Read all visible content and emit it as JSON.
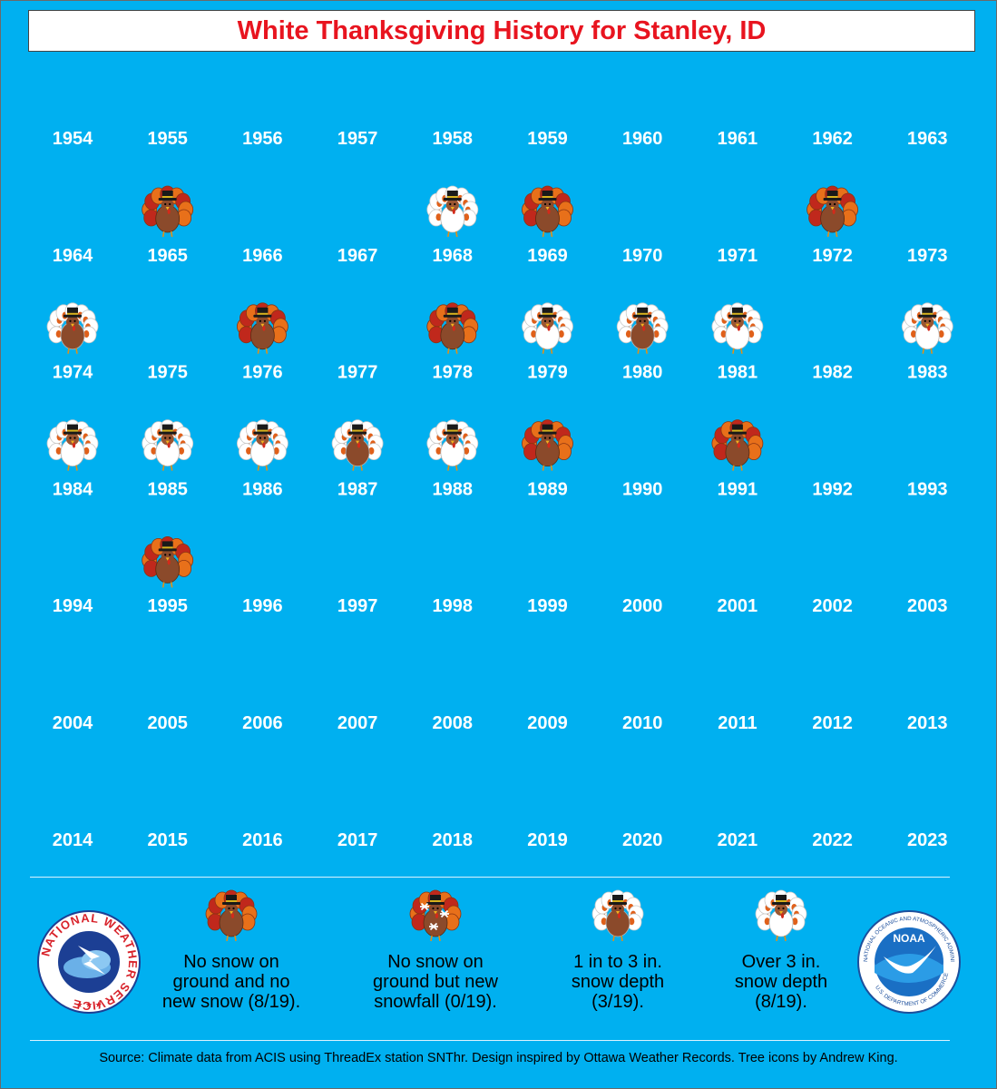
{
  "title": "White Thanksgiving History for Stanley, ID",
  "chart_data": {
    "type": "table",
    "columns_per_row": 10,
    "years": [
      "1954",
      "1955",
      "1956",
      "1957",
      "1958",
      "1959",
      "1960",
      "1961",
      "1962",
      "1963",
      "1964",
      "1965",
      "1966",
      "1967",
      "1968",
      "1969",
      "1970",
      "1971",
      "1972",
      "1973",
      "1974",
      "1975",
      "1976",
      "1977",
      "1978",
      "1979",
      "1980",
      "1981",
      "1982",
      "1983",
      "1984",
      "1985",
      "1986",
      "1987",
      "1988",
      "1989",
      "1990",
      "1991",
      "1992",
      "1993",
      "1994",
      "1995",
      "1996",
      "1997",
      "1998",
      "1999",
      "2000",
      "2001",
      "2002",
      "2003",
      "2004",
      "2005",
      "2006",
      "2007",
      "2008",
      "2009",
      "2010",
      "2011",
      "2012",
      "2013",
      "2014",
      "2015",
      "2016",
      "2017",
      "2018",
      "2019",
      "2020",
      "2021",
      "2022",
      "2023"
    ],
    "categories": {
      "none": "No snow on ground and no new snow",
      "new": "No snow on ground but new snowfall",
      "light": "1 in to 3 in. snow depth",
      "heavy": "Over 3 in. snow depth"
    },
    "observations": [
      {
        "year": "1955",
        "category": "none"
      },
      {
        "year": "1958",
        "category": "heavy"
      },
      {
        "year": "1959",
        "category": "none"
      },
      {
        "year": "1962",
        "category": "none"
      },
      {
        "year": "1964",
        "category": "light"
      },
      {
        "year": "1966",
        "category": "none"
      },
      {
        "year": "1968",
        "category": "none"
      },
      {
        "year": "1969",
        "category": "heavy"
      },
      {
        "year": "1970",
        "category": "light"
      },
      {
        "year": "1971",
        "category": "heavy"
      },
      {
        "year": "1973",
        "category": "heavy"
      },
      {
        "year": "1974",
        "category": "heavy"
      },
      {
        "year": "1975",
        "category": "heavy"
      },
      {
        "year": "1976",
        "category": "heavy"
      },
      {
        "year": "1977",
        "category": "light"
      },
      {
        "year": "1978",
        "category": "heavy"
      },
      {
        "year": "1979",
        "category": "none"
      },
      {
        "year": "1981",
        "category": "none"
      },
      {
        "year": "1985",
        "category": "none"
      }
    ]
  },
  "legend": [
    {
      "key": "none",
      "line1": "No snow on",
      "line2": "ground and no",
      "line3": "new snow (8/19)."
    },
    {
      "key": "new",
      "line1": "No snow on",
      "line2": "ground but new",
      "line3": "snowfall (0/19)."
    },
    {
      "key": "light",
      "line1": "1 in to 3 in.",
      "line2": "snow depth",
      "line3": "(3/19)."
    },
    {
      "key": "heavy",
      "line1": "Over 3 in.",
      "line2": "snow depth",
      "line3": "(8/19)."
    }
  ],
  "logos": {
    "nws_text": "NATIONAL WEATHER SERVICE",
    "noaa_text": "NOAA",
    "noaa_ring_text": "NATIONAL OCEANIC AND ATMOSPHERIC ADMINISTRATION",
    "noaa_ring_text_bottom": "U.S. DEPARTMENT OF COMMERCE"
  },
  "source": "Source: Climate data from ACIS using ThreadEx station SNThr. Design inspired by Ottawa Weather Records. Tree icons by Andrew King.",
  "colors": {
    "background": "#00b0f0",
    "title": "#e8141f",
    "turkey_body": "#8b4a2b",
    "feather_orange": "#e8701a",
    "feather_red": "#c0281c",
    "snow": "#ffffff"
  }
}
